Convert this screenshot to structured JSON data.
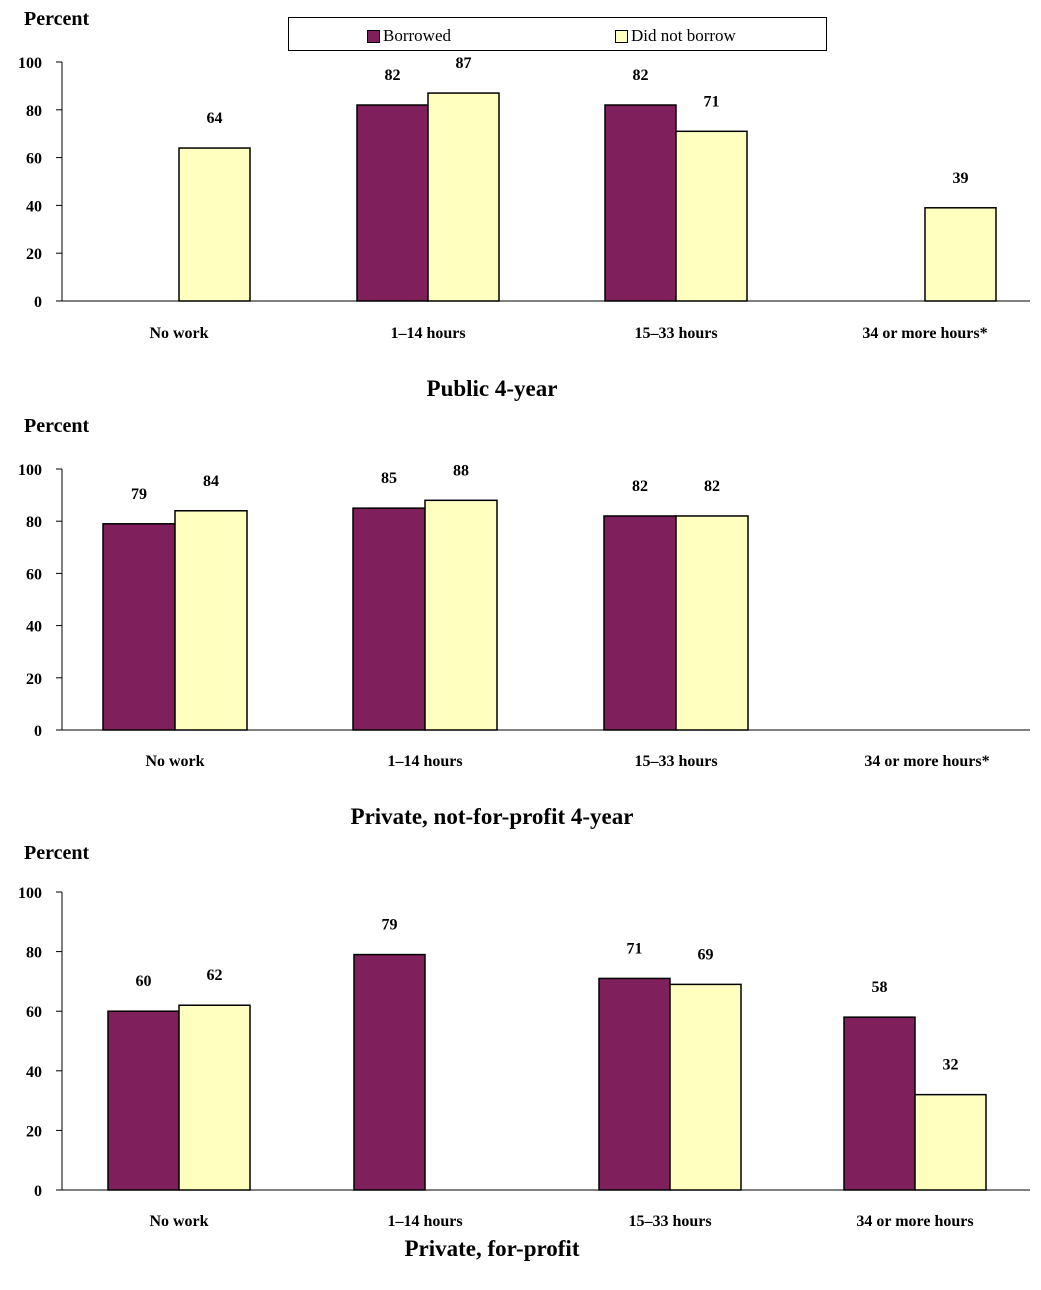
{
  "legend": {
    "borrowed": "Borrowed",
    "did_not_borrow": "Did not borrow"
  },
  "colors": {
    "borrowed": "#7f1f5c",
    "did_not_borrow": "#ffffc0"
  },
  "chart_data": [
    {
      "type": "bar",
      "title": "Public 4-year",
      "ylabel": "Percent",
      "ylim": [
        0,
        100
      ],
      "yticks": [
        0,
        20,
        40,
        60,
        80,
        100
      ],
      "categories": [
        "No work",
        "1–14 hours",
        "15–33 hours",
        "34 or more hours*"
      ],
      "series": [
        {
          "name": "Borrowed",
          "values": [
            null,
            82,
            82,
            null
          ]
        },
        {
          "name": "Did not borrow",
          "values": [
            64,
            87,
            71,
            39
          ]
        }
      ]
    },
    {
      "type": "bar",
      "title": "Private, not-for-profit 4-year",
      "ylabel": "Percent",
      "ylim": [
        0,
        100
      ],
      "yticks": [
        0,
        20,
        40,
        60,
        80,
        100
      ],
      "categories": [
        "No work",
        "1–14 hours",
        "15–33 hours",
        "34 or more hours*"
      ],
      "series": [
        {
          "name": "Borrowed",
          "values": [
            79,
            85,
            82,
            null
          ]
        },
        {
          "name": "Did not borrow",
          "values": [
            84,
            88,
            82,
            null
          ]
        }
      ]
    },
    {
      "type": "bar",
      "title": "Private, for-profit",
      "ylabel": "Percent",
      "ylim": [
        0,
        100
      ],
      "yticks": [
        0,
        20,
        40,
        60,
        80,
        100
      ],
      "categories": [
        "No work",
        "1–14 hours",
        "15–33 hours",
        "34 or more hours"
      ],
      "series": [
        {
          "name": "Borrowed",
          "values": [
            60,
            79,
            71,
            58
          ]
        },
        {
          "name": "Did not borrow",
          "values": [
            62,
            null,
            69,
            32
          ]
        }
      ]
    }
  ]
}
